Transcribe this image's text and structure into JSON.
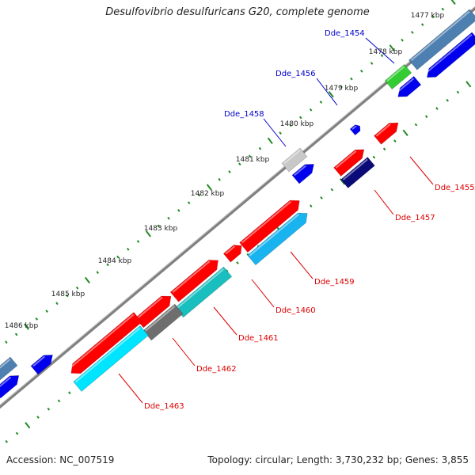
{
  "title": "Desulfovibrio desulfuricans G20, complete genome",
  "footer": {
    "accession": "Accession: NC_007519",
    "summary": "Topology: circular; Length: 3,730,232 bp; Genes: 3,855"
  },
  "scale_labels": [
    "1477 kbp",
    "1478 kbp",
    "1479 kbp",
    "1480 kbp",
    "1481 kbp",
    "1482 kbp",
    "1483 kbp",
    "1484 kbp",
    "1485 kbp",
    "1486 kbp"
  ],
  "colors": {
    "backbone": "#808080",
    "tick": "#228b22",
    "label_top": "#0000cc",
    "label_bottom": "#dd0000",
    "feature_red": "#ff0000",
    "feature_blue": "#0000ee",
    "feature_cyan": "#00e5ff",
    "feature_skyblue": "#19b4f0",
    "feature_teal": "#19bfbf",
    "feature_grey": "#6e6e6e",
    "feature_lightgrey": "#c8c8c8",
    "feature_green": "#33cc33",
    "feature_navy": "#0a0a78",
    "feature_steelblue": "#4d7fb0"
  },
  "gene_labels": [
    {
      "name": "Dde_1454",
      "side": "top"
    },
    {
      "name": "Dde_1456",
      "side": "top"
    },
    {
      "name": "Dde_1458",
      "side": "top"
    },
    {
      "name": "Dde_1455",
      "side": "bottom"
    },
    {
      "name": "Dde_1457",
      "side": "bottom"
    },
    {
      "name": "Dde_1459",
      "side": "bottom"
    },
    {
      "name": "Dde_1460",
      "side": "bottom"
    },
    {
      "name": "Dde_1461",
      "side": "bottom"
    },
    {
      "name": "Dde_1462",
      "side": "bottom"
    },
    {
      "name": "Dde_1463",
      "side": "bottom"
    }
  ]
}
